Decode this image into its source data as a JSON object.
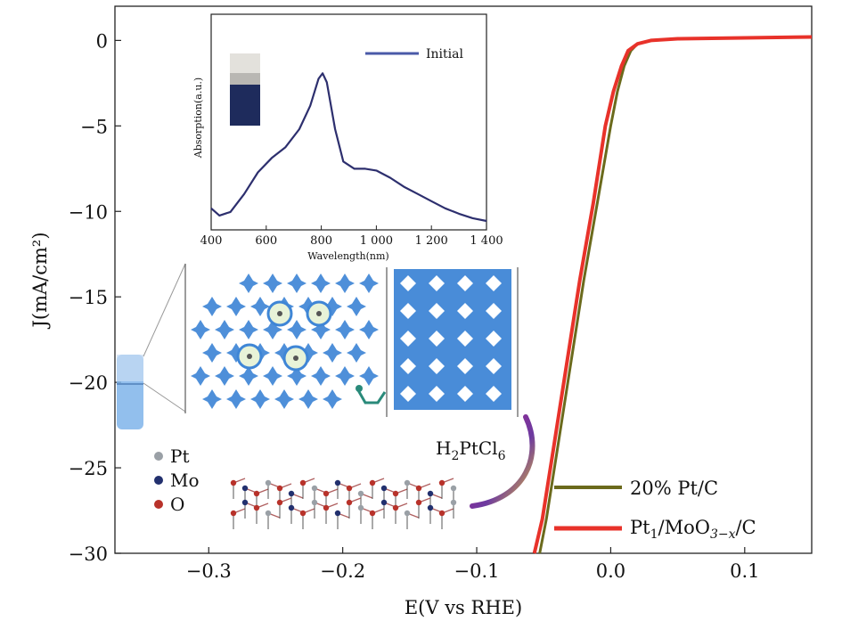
{
  "chart_data": [
    {
      "type": "line",
      "title": "",
      "xlabel": "E(V vs RHE)",
      "ylabel": "J(mA/cm²)",
      "xlim": [
        -0.37,
        0.15
      ],
      "ylim": [
        -30,
        2
      ],
      "xticks": [
        -0.3,
        -0.2,
        -0.1,
        0.0,
        0.1
      ],
      "xtick_labels": [
        "−0.3",
        "−0.2",
        "−0.1",
        "0.0",
        "0.1"
      ],
      "yticks": [
        0,
        -5,
        -10,
        -15,
        -20,
        -25,
        -30
      ],
      "ytick_labels": [
        "0",
        "−5",
        "−10",
        "−15",
        "−20",
        "−25",
        "−30"
      ],
      "legend_position": "bottom-right",
      "series": [
        {
          "name": "20% Pt/C",
          "color": "#6b6a1c",
          "x": [
            -0.053,
            -0.048,
            -0.04,
            -0.03,
            -0.02,
            -0.01,
            0.0,
            0.005,
            0.01,
            0.015,
            0.02,
            0.03,
            0.05,
            0.1,
            0.15
          ],
          "y": [
            -30,
            -28,
            -24,
            -19,
            -14,
            -9.5,
            -5,
            -3,
            -1.5,
            -0.6,
            -0.2,
            0.0,
            0.1,
            0.15,
            0.2
          ]
        },
        {
          "name": "Pt1/MoO3−x/C",
          "color": "#e8322a",
          "x": [
            -0.057,
            -0.051,
            -0.043,
            -0.033,
            -0.023,
            -0.013,
            -0.004,
            0.002,
            0.008,
            0.013,
            0.02,
            0.03,
            0.05,
            0.1,
            0.15
          ],
          "y": [
            -30,
            -28,
            -24,
            -19,
            -14,
            -9.5,
            -5,
            -3,
            -1.5,
            -0.6,
            -0.2,
            0.0,
            0.1,
            0.15,
            0.2
          ]
        }
      ],
      "legend": {
        "pt_c": "20% Pt/C",
        "pt1_base": "Pt",
        "pt1_sub1": "1",
        "pt1_mid": "/MoO",
        "pt1_sub2": "3−x",
        "pt1_end": "/C"
      }
    },
    {
      "type": "line",
      "title": "",
      "xlabel": "Wavelength(nm)",
      "ylabel": "Absorption(a.u.)",
      "xlim": [
        400,
        1400
      ],
      "xticks": [
        400,
        600,
        800,
        1000,
        1200,
        1400
      ],
      "xtick_labels": [
        "400",
        "600",
        "800",
        "1 000",
        "1 200",
        "1 400"
      ],
      "series": [
        {
          "name": "Initial",
          "color": "#2d2f6e",
          "x": [
            400,
            430,
            470,
            520,
            570,
            620,
            670,
            720,
            760,
            790,
            805,
            820,
            850,
            880,
            920,
            960,
            1000,
            1050,
            1100,
            1150,
            1200,
            1250,
            1300,
            1350,
            1400
          ],
          "y": [
            0.08,
            0.04,
            0.06,
            0.16,
            0.28,
            0.36,
            0.42,
            0.52,
            0.65,
            0.8,
            0.83,
            0.78,
            0.52,
            0.34,
            0.3,
            0.3,
            0.29,
            0.25,
            0.2,
            0.16,
            0.12,
            0.08,
            0.05,
            0.025,
            0.01
          ]
        }
      ]
    }
  ],
  "schematic": {
    "precursor_label_base": "H",
    "precursor_label_sub1": "2",
    "precursor_label_mid": "PtCl",
    "precursor_label_sub2": "6",
    "atom_legend": [
      {
        "label": "Pt",
        "color": "#9aa0a6"
      },
      {
        "label": "Mo",
        "color": "#22306e"
      },
      {
        "label": "O",
        "color": "#b8322a"
      }
    ],
    "framework_color": "#3f86d6"
  }
}
